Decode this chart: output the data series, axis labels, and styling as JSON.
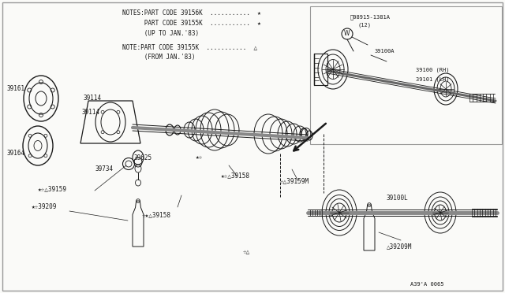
{
  "bg_color": "#fafaf8",
  "border_color": "#999999",
  "line_color": "#1a1a1a",
  "notes_line1": "NOTES:PART CODE 39156K ............",
  "notes_line2": "      PART CODE 39155K ............",
  "notes_line3": "      (UP TO JAN.'83)",
  "notes_line4": "NOTE:PART CODE 39155K ............",
  "notes_line5": "      (FROM JAN.'83)",
  "diagram_code": "A39'A 0065",
  "sym1": "★",
  "sym2": "☆",
  "sym3": "△"
}
